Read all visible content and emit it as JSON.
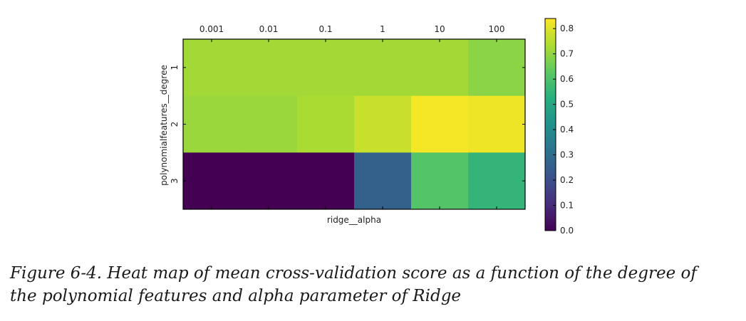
{
  "chart_data": {
    "type": "heatmap",
    "xlabel": "ridge__alpha",
    "ylabel": "polynomialfeatures__degree",
    "x_categories": [
      "0.001",
      "0.01",
      "0.1",
      "1",
      "10",
      "100"
    ],
    "y_categories": [
      "1",
      "2",
      "3"
    ],
    "values": [
      [
        0.72,
        0.72,
        0.72,
        0.72,
        0.72,
        0.69
      ],
      [
        0.71,
        0.71,
        0.73,
        0.77,
        0.83,
        0.82
      ],
      [
        0.0,
        0.0,
        0.0,
        0.26,
        0.61,
        0.55
      ]
    ],
    "colorbar": {
      "min": 0.0,
      "max": 0.84,
      "ticks": [
        "0.0",
        "0.1",
        "0.2",
        "0.3",
        "0.4",
        "0.5",
        "0.6",
        "0.7",
        "0.8"
      ]
    },
    "colormap": "viridis"
  },
  "caption": "Figure 6-4. Heat map of mean cross-validation score as a function of the degree of the polynomial features and alpha parameter of Ridge"
}
